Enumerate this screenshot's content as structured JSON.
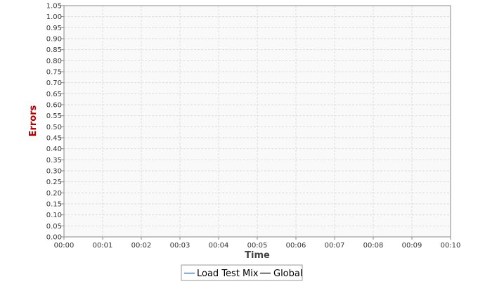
{
  "chart_data": {
    "type": "line",
    "title": "",
    "xlabel": "Time",
    "ylabel": "Errors",
    "x_tick_labels": [
      "00:00",
      "00:01",
      "00:02",
      "00:03",
      "00:04",
      "00:05",
      "00:06",
      "00:07",
      "00:08",
      "00:09",
      "00:10"
    ],
    "xlim": [
      "00:00",
      "00:10"
    ],
    "ylim": [
      0,
      1.05
    ],
    "y_tick_labels": [
      "0.00",
      "0.05",
      "0.10",
      "0.15",
      "0.20",
      "0.25",
      "0.30",
      "0.35",
      "0.40",
      "0.45",
      "0.50",
      "0.55",
      "0.60",
      "0.65",
      "0.70",
      "0.75",
      "0.80",
      "0.85",
      "0.90",
      "0.95",
      "1.00",
      "1.05"
    ],
    "grid": true,
    "legend_position": "bottom",
    "series": [
      {
        "name": "Load Test Mix",
        "color": "#1f5f9f",
        "values": []
      },
      {
        "name": "Global",
        "color": "#000000",
        "values": []
      }
    ]
  }
}
